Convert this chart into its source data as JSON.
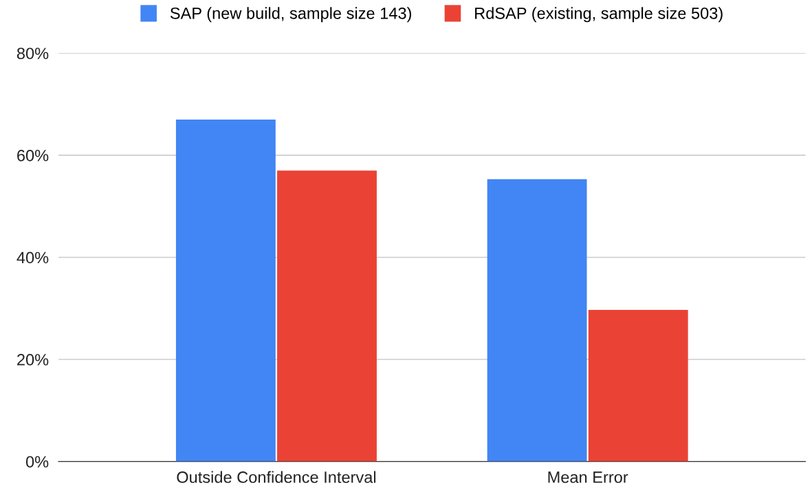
{
  "chart_data": {
    "type": "bar",
    "categories": [
      "Outside Confidence Interval",
      "Mean Error"
    ],
    "series": [
      {
        "name": "SAP (new build, sample size 143)",
        "color": "#4285f4",
        "values": [
          67,
          55.3
        ]
      },
      {
        "name": "RdSAP (existing, sample size 503)",
        "color": "#ea4335",
        "values": [
          57,
          29.7
        ]
      }
    ],
    "ylim": [
      0,
      80
    ],
    "yticks": [
      {
        "value": 0,
        "label": "0%"
      },
      {
        "value": 20,
        "label": "20%"
      },
      {
        "value": 40,
        "label": "40%"
      },
      {
        "value": 60,
        "label": "60%"
      },
      {
        "value": 80,
        "label": "80%"
      }
    ],
    "grid": "y",
    "legend": "top"
  }
}
